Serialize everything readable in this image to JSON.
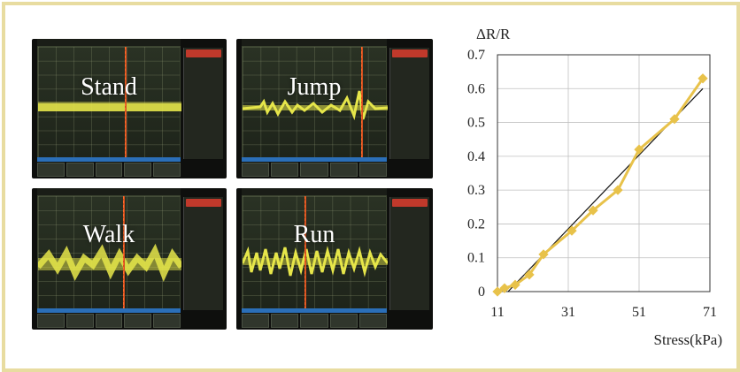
{
  "colors": {
    "frame_border": "#e8dca0",
    "trace": "#e6e64a",
    "series_line": "#e8c24a",
    "fit_line": "#111111",
    "cursor": "#d4501f",
    "scope_status_bar": "#2b6fb8"
  },
  "scopes": [
    {
      "label": "Stand",
      "trace_style": "flat"
    },
    {
      "label": "Jump",
      "trace_style": "burst"
    },
    {
      "label": "Walk",
      "trace_style": "periodic"
    },
    {
      "label": "Run",
      "trace_style": "dense"
    }
  ],
  "chart_data": {
    "type": "line",
    "title": "",
    "ylabel": "ΔR/R",
    "xlabel": "Stress(kPa)",
    "xlim": [
      11,
      71
    ],
    "ylim": [
      0,
      0.7
    ],
    "xticks": [
      "11",
      "31",
      "51",
      "71"
    ],
    "yticks": [
      "0",
      "0.1",
      "0.2",
      "0.3",
      "0.4",
      "0.5",
      "0.6",
      "0.7"
    ],
    "grid": true,
    "series": [
      {
        "x": [
          11,
          13,
          16,
          20,
          24,
          32,
          38,
          45,
          51,
          61,
          69
        ],
        "y": [
          0.0,
          0.01,
          0.02,
          0.05,
          0.11,
          0.18,
          0.24,
          0.3,
          0.42,
          0.51,
          0.63
        ]
      }
    ],
    "fit_line": {
      "x": [
        14,
        69
      ],
      "y": [
        0.0,
        0.6
      ]
    }
  }
}
